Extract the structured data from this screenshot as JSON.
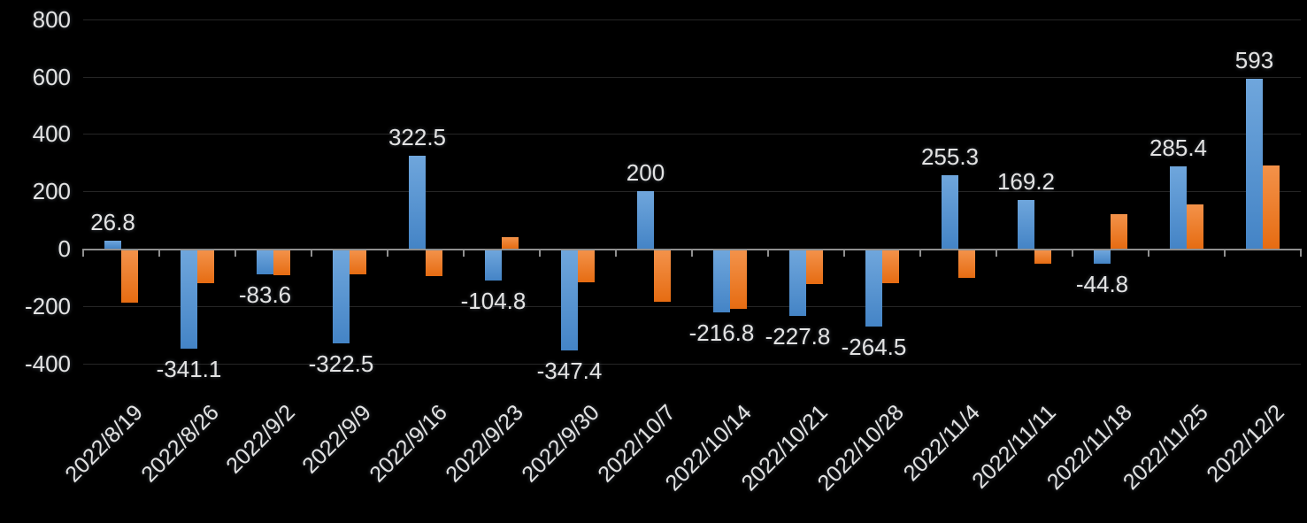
{
  "chart_data": {
    "type": "bar",
    "title": "",
    "xlabel": "",
    "ylabel": "",
    "legend": "none",
    "grid": true,
    "background_color": "#000000",
    "grid_color": "#262626",
    "axis_color": "#8f8f8f",
    "text_color": "#e3e3e3",
    "categories": [
      "2022/8/19",
      "2022/8/26",
      "2022/9/2",
      "2022/9/9",
      "2022/9/16",
      "2022/9/23",
      "2022/9/30",
      "2022/10/7",
      "2022/10/14",
      "2022/10/21",
      "2022/10/28",
      "2022/11/4",
      "2022/11/11",
      "2022/11/18",
      "2022/11/25",
      "2022/12/2"
    ],
    "series": [
      {
        "name": "blue-series",
        "color": "#5B9BD5",
        "values": [
          26.8,
          -341.1,
          -83.6,
          -322.5,
          322.5,
          -104.8,
          -347.4,
          200,
          -216.8,
          -227.8,
          -264.5,
          255.3,
          169.2,
          -44.8,
          285.4,
          593
        ],
        "data_labels": [
          "26.8",
          "-341.1",
          "-83.6",
          "-322.5",
          "322.5",
          "-104.8",
          "-347.4",
          "200",
          "-216.8",
          "-227.8",
          "-264.5",
          "255.3",
          "169.2",
          "-44.8",
          "285.4",
          "593"
        ]
      },
      {
        "name": "orange-series",
        "color": "#ED7D31",
        "values": [
          -183,
          -113,
          -85,
          -84,
          -90,
          40,
          -112,
          -180,
          -205,
          -116,
          -113,
          -95,
          -46,
          120,
          155,
          290
        ],
        "data_labels": []
      }
    ],
    "y_axis": {
      "min": -400,
      "max": 800,
      "step": 200,
      "tick_labels": [
        "800",
        "600",
        "400",
        "200",
        "0",
        "-200",
        "-400"
      ]
    }
  }
}
